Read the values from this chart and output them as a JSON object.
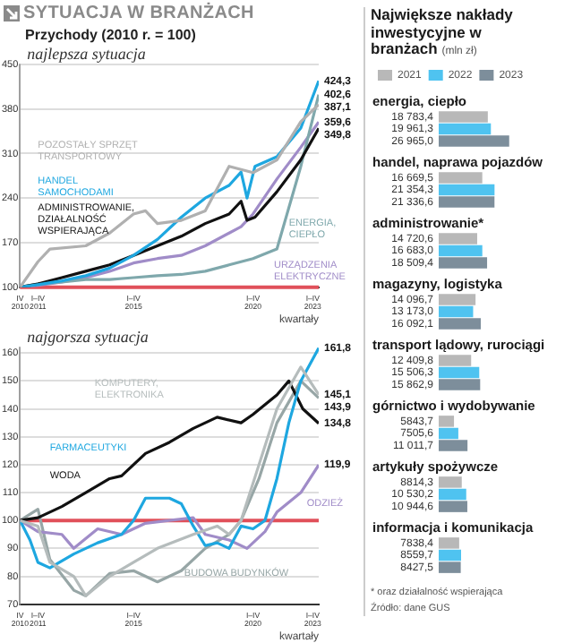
{
  "chart_data": [
    {
      "type": "line",
      "title": "SYTUACJA W BRANŻACH",
      "subtitle": "Przychody (2010 r. = 100)",
      "xlabel": "kwartały",
      "xlim": [
        "2010-10",
        "2023-04"
      ],
      "xticks": [
        {
          "value": "2010-10",
          "label": "IV 2010"
        },
        {
          "value": "2011-07",
          "label": "I–IV 2011"
        },
        {
          "value": "2015-07",
          "label": "I–IV 2015"
        },
        {
          "value": "2020-07",
          "label": "I–IV 2020"
        },
        {
          "value": "2023-01",
          "label": "I–IV 2023"
        }
      ],
      "ylim": [
        100,
        450
      ],
      "yticks": [
        100,
        170,
        240,
        310,
        380,
        450
      ],
      "grid": "y",
      "series": [
        {
          "name": "POZOSTAŁY SPRZĘT TRANSPORTOWY",
          "color": "#b0b0b0",
          "x": [
            "2010-10",
            "2011-07",
            "2012-01",
            "2013-07",
            "2014-07",
            "2015-07",
            "2016-01",
            "2016-07",
            "2017-07",
            "2018-07",
            "2019-07",
            "2020-07",
            "2021-07",
            "2022-07",
            "2023-04"
          ],
          "values": [
            100,
            140,
            160,
            165,
            185,
            215,
            220,
            200,
            205,
            220,
            290,
            280,
            300,
            360,
            387.1
          ]
        },
        {
          "name": "HANDEL SAMOCHODAMI",
          "color": "#1ea7e0",
          "x": [
            "2010-10",
            "2011-07",
            "2012-07",
            "2013-07",
            "2014-07",
            "2015-07",
            "2016-07",
            "2017-07",
            "2018-07",
            "2019-07",
            "2020-01",
            "2020-04",
            "2020-08",
            "2021-07",
            "2022-07",
            "2023-04"
          ],
          "values": [
            100,
            104,
            110,
            118,
            130,
            150,
            175,
            210,
            240,
            260,
            281,
            240,
            290,
            305,
            350,
            424.3
          ]
        },
        {
          "name": "ADMINISTROWANIE, DZIAŁALNOŚĆ WSPIERAJĄCA",
          "color": "#111111",
          "x": [
            "2010-10",
            "2011-07",
            "2012-07",
            "2013-07",
            "2014-07",
            "2015-07",
            "2016-07",
            "2017-07",
            "2018-07",
            "2019-07",
            "2020-01",
            "2020-04",
            "2020-08",
            "2021-07",
            "2022-07",
            "2023-04"
          ],
          "values": [
            100,
            105,
            115,
            125,
            135,
            150,
            165,
            180,
            200,
            215,
            235,
            205,
            210,
            250,
            300,
            349.8
          ]
        },
        {
          "name": "ENERGIA, CIEPŁO",
          "color": "#7fa8ac",
          "x": [
            "2010-10",
            "2011-07",
            "2012-07",
            "2013-07",
            "2014-07",
            "2015-07",
            "2016-07",
            "2017-07",
            "2018-07",
            "2019-07",
            "2020-01",
            "2020-07",
            "2021-07",
            "2022-07",
            "2023-04"
          ],
          "values": [
            100,
            105,
            108,
            112,
            112,
            115,
            118,
            120,
            125,
            135,
            140,
            145,
            160,
            290,
            402.6
          ]
        },
        {
          "name": "URZĄDZENIA ELEKTRYCZNE",
          "color": "#a08cc8",
          "x": [
            "2010-10",
            "2011-07",
            "2012-07",
            "2013-07",
            "2014-07",
            "2015-07",
            "2016-07",
            "2017-07",
            "2018-07",
            "2019-07",
            "2020-01",
            "2020-07",
            "2021-07",
            "2022-07",
            "2023-04"
          ],
          "values": [
            100,
            103,
            108,
            115,
            125,
            138,
            145,
            150,
            165,
            185,
            195,
            215,
            270,
            320,
            359.6
          ]
        }
      ],
      "ref_lines": [
        {
          "axis": "y",
          "value": 100,
          "color": "#e0505a"
        }
      ],
      "annotations": [
        "najlepsza sytuacja",
        {
          "text": "424,3",
          "x": "2023-04",
          "y": 424.3
        },
        {
          "text": "402,6",
          "x": "2023-04",
          "y": 402.6
        },
        {
          "text": "387,1",
          "x": "2023-04",
          "y": 387.1
        },
        {
          "text": "359,6",
          "x": "2023-04",
          "y": 359.6
        },
        {
          "text": "349,8",
          "x": "2023-04",
          "y": 349.8
        }
      ]
    },
    {
      "type": "line",
      "title": "najgorsza sytuacja",
      "xlabel": "kwartały",
      "xlim": [
        "2010-10",
        "2023-04"
      ],
      "xticks": [
        {
          "value": "2010-10",
          "label": "IV 2010"
        },
        {
          "value": "2011-07",
          "label": "I–IV 2011"
        },
        {
          "value": "2015-07",
          "label": "I–IV 2015"
        },
        {
          "value": "2020-07",
          "label": "I–IV 2020"
        },
        {
          "value": "2023-01",
          "label": "I–IV 2023"
        }
      ],
      "ylim": [
        70,
        162
      ],
      "yticks": [
        70,
        80,
        90,
        100,
        110,
        120,
        130,
        140,
        150,
        160
      ],
      "grid": "y",
      "series": [
        {
          "name": "KOMPUTERY, ELEKTRONIKA",
          "color": "#b5bcbc",
          "x": [
            "2010-10",
            "2011-07",
            "2012-01",
            "2013-01",
            "2013-07",
            "2014-07",
            "2015-07",
            "2016-07",
            "2018-01",
            "2019-01",
            "2019-07",
            "2020-01",
            "2020-10",
            "2021-07",
            "2022-07",
            "2023-04"
          ],
          "values": [
            100,
            98,
            85,
            80,
            73,
            80,
            85,
            90,
            95,
            98,
            95,
            100,
            120,
            140,
            155,
            145.1
          ]
        },
        {
          "name": "FARMACEUTYKI",
          "color": "#1ea7e0",
          "x": [
            "2010-10",
            "2011-03",
            "2011-07",
            "2012-01",
            "2013-01",
            "2014-01",
            "2015-01",
            "2015-07",
            "2016-01",
            "2017-01",
            "2017-07",
            "2018-01",
            "2018-07",
            "2019-01",
            "2019-07",
            "2020-01",
            "2020-07",
            "2021-01",
            "2021-07",
            "2022-01",
            "2022-07",
            "2023-04"
          ],
          "values": [
            100,
            93,
            85,
            83,
            88,
            92,
            95,
            100,
            108,
            108,
            106,
            98,
            91,
            92,
            90,
            98,
            97,
            100,
            115,
            135,
            150,
            161.8
          ]
        },
        {
          "name": "WODA",
          "color": "#111111",
          "x": [
            "2010-10",
            "2011-07",
            "2012-07",
            "2013-07",
            "2014-07",
            "2015-01",
            "2016-01",
            "2017-01",
            "2018-01",
            "2019-01",
            "2020-01",
            "2020-07",
            "2021-07",
            "2022-01",
            "2022-08",
            "2023-04"
          ],
          "values": [
            100,
            101,
            105,
            110,
            115,
            116,
            124,
            128,
            133,
            137,
            135,
            138,
            145,
            150,
            140,
            134.8
          ]
        },
        {
          "name": "ODZIEŻ",
          "color": "#a08cc8",
          "x": [
            "2010-10",
            "2011-07",
            "2012-07",
            "2013-01",
            "2014-01",
            "2015-01",
            "2016-01",
            "2017-01",
            "2018-01",
            "2018-07",
            "2019-07",
            "2020-04",
            "2021-01",
            "2021-07",
            "2022-07",
            "2023-04"
          ],
          "values": [
            100,
            96,
            95,
            90,
            97,
            95,
            99,
            100,
            101,
            95,
            93,
            90,
            96,
            103,
            110,
            119.9
          ]
        },
        {
          "name": "BUDOWA BUDYNKÓW",
          "color": "#97a6a6",
          "x": [
            "2010-10",
            "2011-07",
            "2012-01",
            "2013-01",
            "2013-07",
            "2014-07",
            "2015-07",
            "2016-07",
            "2017-07",
            "2018-07",
            "2019-07",
            "2020-01",
            "2020-10",
            "2021-07",
            "2022-07",
            "2023-04"
          ],
          "values": [
            100,
            104,
            86,
            75,
            73,
            81,
            82,
            78,
            82,
            90,
            95,
            100,
            115,
            135,
            150,
            143.9
          ]
        }
      ],
      "ref_lines": [
        {
          "axis": "y",
          "value": 100,
          "color": "#e0505a"
        }
      ],
      "annotations": [
        {
          "text": "161,8",
          "x": "2023-04",
          "y": 161.8
        },
        {
          "text": "145,1",
          "x": "2023-04",
          "y": 145.1
        },
        {
          "text": "143,9",
          "x": "2023-04",
          "y": 143.9
        },
        {
          "text": "134,8",
          "x": "2023-04",
          "y": 134.8
        },
        {
          "text": "119,9",
          "x": "2023-04",
          "y": 119.9
        }
      ]
    },
    {
      "type": "bar",
      "orientation": "horizontal",
      "title": "Największe nakłady inwestycyjne w branżach",
      "subtitle": "(mln zł)",
      "legend": "top left",
      "categories": [
        "energia, ciepło",
        "handel, naprawa pojazdów",
        "administrowanie*",
        "magazyny, logistyka",
        "transport lądowy, rurociągi",
        "górnictwo i wydobywanie",
        "artykuły spożywcze",
        "informacja i komunikacja"
      ],
      "series": [
        {
          "name": "2021",
          "color": "#b8b8b8",
          "values": [
            18783.4,
            16669.5,
            14720.6,
            14096.7,
            12409.8,
            5843.7,
            8814.3,
            7838.4
          ],
          "value_labels": [
            "18 783,4",
            "16 669,5",
            "14 720,6",
            "14 096,7",
            "12 409,8",
            "5843,7",
            "8814,3",
            "7838,4"
          ]
        },
        {
          "name": "2022",
          "color": "#4fc3f0",
          "values": [
            19961.3,
            21354.3,
            16683.0,
            13173.0,
            15506.3,
            7505.6,
            10530.2,
            8559.7
          ],
          "value_labels": [
            "19 961,3",
            "21 354,3",
            "16 683,0",
            "13 173,0",
            "15 506,3",
            "7505,6",
            "10 530,2",
            "8559,7"
          ]
        },
        {
          "name": "2023",
          "color": "#7d8e9b",
          "values": [
            26965.0,
            21336.6,
            18509.4,
            16092.1,
            15862.9,
            11011.7,
            10944.6,
            8427.5
          ],
          "value_labels": [
            "26 965,0",
            "21 336,6",
            "18 509,4",
            "16 092,1",
            "15 862,9",
            "11 011,7",
            "10 944,6",
            "8427,5"
          ]
        }
      ],
      "annotations": [
        "* oraz działalność wspierająca",
        "Źródło: dane GUS"
      ]
    }
  ]
}
